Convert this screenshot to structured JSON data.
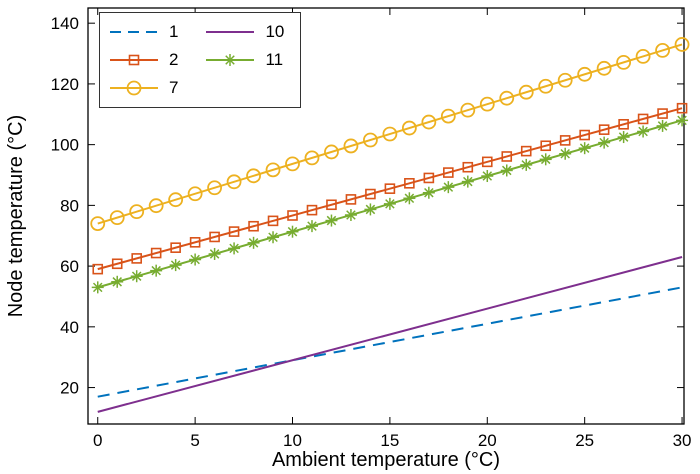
{
  "chart_data": {
    "type": "line",
    "title": "",
    "xlabel": "Ambient temperature (°C)",
    "ylabel": "Node temperature (°C)",
    "xlim": [
      -0.5,
      30.1
    ],
    "ylim": [
      8,
      145
    ],
    "xticks": [
      0,
      5,
      10,
      15,
      20,
      25,
      30
    ],
    "yticks": [
      20,
      40,
      60,
      80,
      100,
      120,
      140
    ],
    "grid": false,
    "legend_position": "top-left",
    "legend_columns": [
      [
        "1",
        "2",
        "7"
      ],
      [
        "10",
        "11"
      ]
    ],
    "series": [
      {
        "name": "1",
        "color": "#0072BD",
        "line_style": "dashed",
        "marker": "none",
        "marker_interval": 0,
        "x": [
          0,
          30
        ],
        "y": [
          17,
          53
        ]
      },
      {
        "name": "2",
        "color": "#D95319",
        "line_style": "solid",
        "marker": "square",
        "marker_interval": 1,
        "x": [
          0,
          30
        ],
        "y": [
          59,
          112
        ]
      },
      {
        "name": "7",
        "color": "#EDB120",
        "line_style": "solid",
        "marker": "circle",
        "marker_interval": 1,
        "x": [
          0,
          30
        ],
        "y": [
          74,
          133
        ]
      },
      {
        "name": "10",
        "color": "#7E2F8E",
        "line_style": "solid",
        "marker": "none",
        "marker_interval": 0,
        "x": [
          0,
          30
        ],
        "y": [
          12,
          63
        ]
      },
      {
        "name": "11",
        "color": "#77AC30",
        "line_style": "solid",
        "marker": "asterisk",
        "marker_interval": 1,
        "x": [
          0,
          30
        ],
        "y": [
          53,
          108
        ]
      }
    ]
  }
}
